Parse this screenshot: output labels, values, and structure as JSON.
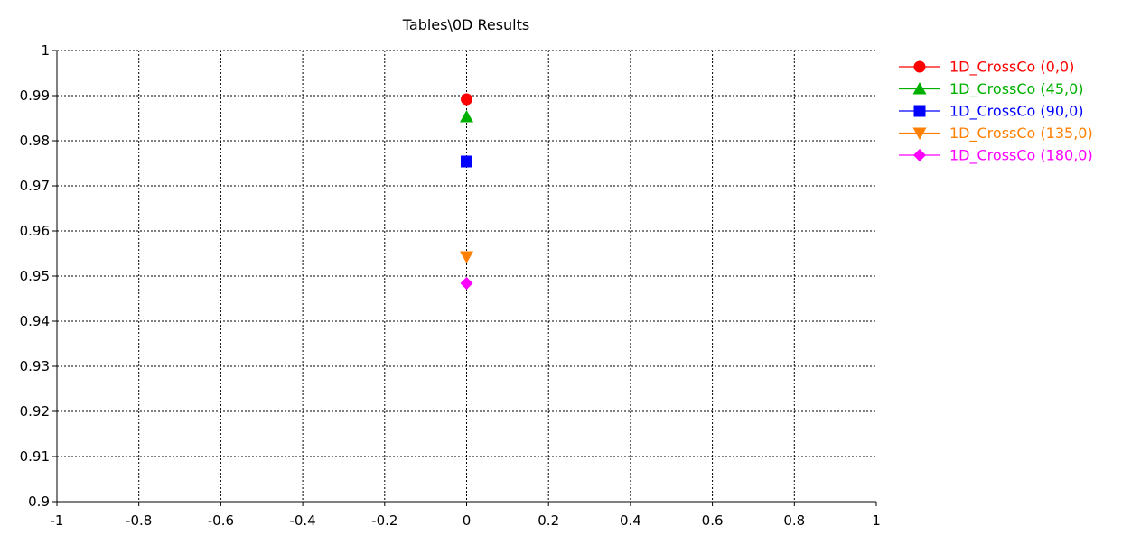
{
  "chart_data": {
    "type": "scatter",
    "title": "Tables\\0D Results",
    "xlabel": "",
    "ylabel": "",
    "xlim": [
      -1,
      1
    ],
    "ylim": [
      0.9,
      1
    ],
    "grid": true,
    "legend_position": "right",
    "x_ticks": [
      "-1",
      "-0.8",
      "-0.6",
      "-0.4",
      "-0.2",
      "0",
      "0.2",
      "0.4",
      "0.6",
      "0.8",
      "1"
    ],
    "x_tick_values": [
      -1,
      -0.8,
      -0.6,
      -0.4,
      -0.2,
      0,
      0.2,
      0.4,
      0.6,
      0.8,
      1
    ],
    "y_ticks": [
      "1",
      "0.99",
      "0.98",
      "0.97",
      "0.96",
      "0.95",
      "0.94",
      "0.93",
      "0.92",
      "0.91",
      "0.9"
    ],
    "y_tick_values": [
      1,
      0.99,
      0.98,
      0.97,
      0.96,
      0.95,
      0.94,
      0.93,
      0.92,
      0.91,
      0.9
    ],
    "series": [
      {
        "name": "1D_CrossCo (0,0)",
        "color": "#ff0000",
        "marker": "circle",
        "x": [
          0
        ],
        "y": [
          0.9892
        ]
      },
      {
        "name": "1D_CrossCo (45,0)",
        "color": "#00b000",
        "marker": "triangle-up",
        "x": [
          0
        ],
        "y": [
          0.9853
        ]
      },
      {
        "name": "1D_CrossCo (90,0)",
        "color": "#0000ff",
        "marker": "square",
        "x": [
          0
        ],
        "y": [
          0.9754
        ]
      },
      {
        "name": "1D_CrossCo (135,0)",
        "color": "#ff8000",
        "marker": "triangle-down",
        "x": [
          0
        ],
        "y": [
          0.9543
        ]
      },
      {
        "name": "1D_CrossCo (180,0)",
        "color": "#ff00ff",
        "marker": "diamond",
        "x": [
          0
        ],
        "y": [
          0.9484
        ]
      }
    ]
  }
}
